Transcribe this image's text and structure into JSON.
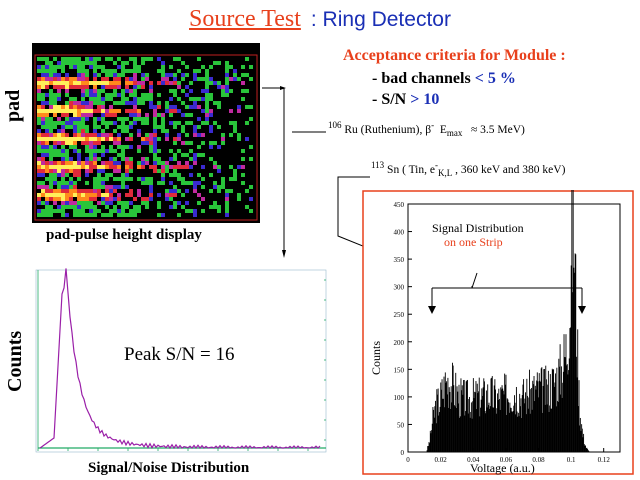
{
  "title": {
    "main": "Source Test",
    "sub": ": Ring Detector"
  },
  "criteria": {
    "heading": "Acceptance criteria for Module :",
    "items": [
      {
        "label": "-  bad channels",
        "value": "< 5 %"
      },
      {
        "label": "-  S/N",
        "value": "> 10"
      }
    ]
  },
  "sources": {
    "ru": {
      "mass": "106",
      "text1": "Ru (Ruthenium),",
      "beta": "β",
      "beta_sup": "-",
      "emax": "E",
      "emax_sub": "max",
      "approx": "≈ 3.5 MeV)"
    },
    "sn": {
      "mass": "113",
      "text1": "Sn ( Tin, e",
      "e_sup": "-",
      "e_sub": "K,L",
      "text2": ", 360  keV  and 380 keV)"
    }
  },
  "pad_display": {
    "axis_label": "pad",
    "caption": "pad-pulse height display"
  },
  "sn_plot": {
    "ylabel": "Counts",
    "caption": "Signal/Noise Distribution",
    "annotation": "Peak S/N = 16",
    "line_color": "#9a1fa8"
  },
  "signal_plot": {
    "legend_line1": "Signal Distribution",
    "legend_line2": "on one Strip",
    "legend2_color": "#e8401c",
    "ylabel": "Counts",
    "xlabel": "Voltage (a.u.)",
    "border_color": "#e8401c"
  },
  "chart_data": {
    "type": "area",
    "xlabel": "Voltage (a.u.)",
    "ylabel": "Counts",
    "xlim": [
      0,
      0.13
    ],
    "ylim": [
      0,
      450
    ],
    "x_ticks": [
      0,
      0.02,
      0.04,
      0.06,
      0.08,
      0.1,
      0.12
    ],
    "y_ticks": [
      0,
      50,
      100,
      150,
      200,
      250,
      300,
      350,
      400,
      450
    ],
    "x_tick_labels": [
      "0",
      "0.02",
      "0.04",
      "0.06",
      "0.08",
      "0.1",
      "0.12"
    ],
    "y_tick_labels": [
      "0",
      "50",
      "100",
      "150",
      "200",
      "250",
      "300",
      "350",
      "400",
      "450"
    ],
    "series": [
      {
        "x": [
          0.011,
          0.013,
          0.015,
          0.017,
          0.019,
          0.021,
          0.023,
          0.025,
          0.027,
          0.029,
          0.031,
          0.035,
          0.04,
          0.045,
          0.05,
          0.055,
          0.06,
          0.065,
          0.07,
          0.075,
          0.08,
          0.085,
          0.09,
          0.094,
          0.097,
          0.099,
          0.1,
          0.101,
          0.102,
          0.103,
          0.104,
          0.105,
          0.107,
          0.109,
          0.111
        ],
        "values": [
          0,
          20,
          60,
          85,
          92,
          110,
          125,
          130,
          120,
          110,
          100,
          95,
          98,
          100,
          105,
          95,
          105,
          110,
          100,
          108,
          115,
          112,
          130,
          150,
          190,
          260,
          350,
          430,
          360,
          240,
          150,
          80,
          30,
          8,
          0
        ]
      }
    ]
  }
}
